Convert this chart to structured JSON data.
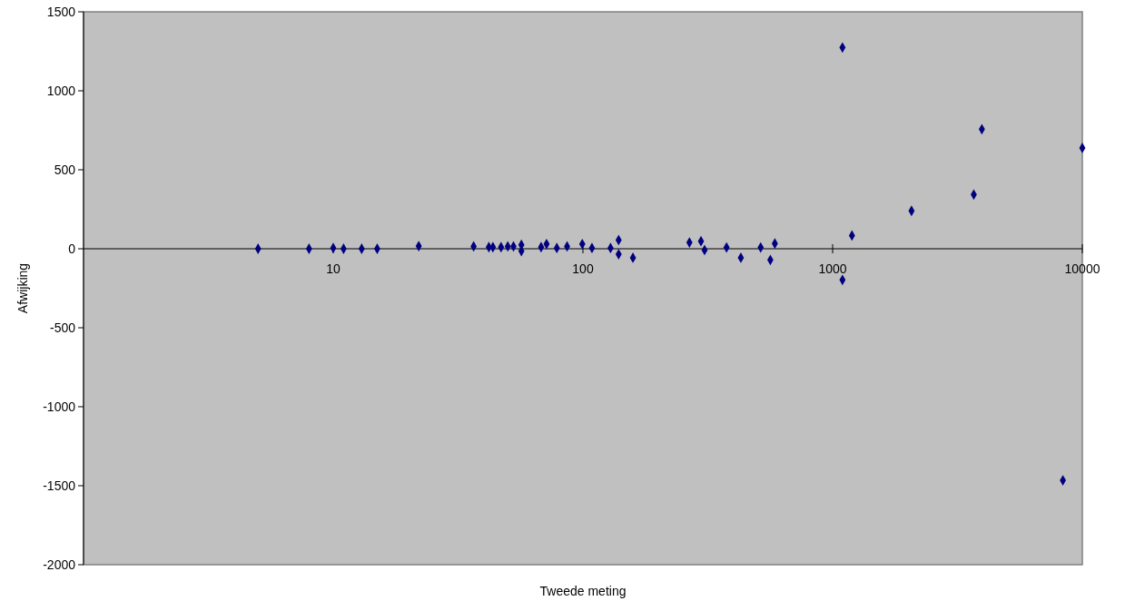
{
  "chart_data": {
    "type": "scatter",
    "xlabel": "Tweede meting",
    "ylabel": "Afwijking",
    "log": "x",
    "xlim": [
      1,
      10000
    ],
    "xticks": [
      10,
      100,
      1000,
      10000
    ],
    "ylim": [
      -2000,
      1500
    ],
    "yticks": [
      -2000,
      -1500,
      -1000,
      -500,
      0,
      500,
      1000,
      1500
    ],
    "grid": false,
    "marker": "diamond",
    "series": [
      {
        "color": "#000080",
        "x": [
          5,
          8,
          10,
          11,
          13,
          15,
          22,
          36.5,
          42,
          43.6,
          47,
          50,
          52.7,
          56.7,
          56.7,
          68,
          71.5,
          78.6,
          86.4,
          99.4,
          108.7,
          129,
          139,
          139,
          158.6,
          267,
          297,
          307,
          376,
          429,
          515,
          563,
          587,
          1095,
          1095,
          1195,
          2070,
          3675,
          3960,
          10000,
          8360
        ],
        "values": [
          0,
          0,
          5,
          0,
          0,
          0,
          17,
          15,
          10,
          10,
          10,
          15,
          15,
          25,
          -15,
          10,
          30,
          5,
          15,
          30,
          5,
          5,
          55,
          -35,
          -57,
          40,
          48,
          -8,
          8,
          -57,
          8,
          -71,
          33,
          1274,
          -197,
          84,
          240,
          343,
          757,
          638,
          -1466
        ]
      }
    ]
  }
}
